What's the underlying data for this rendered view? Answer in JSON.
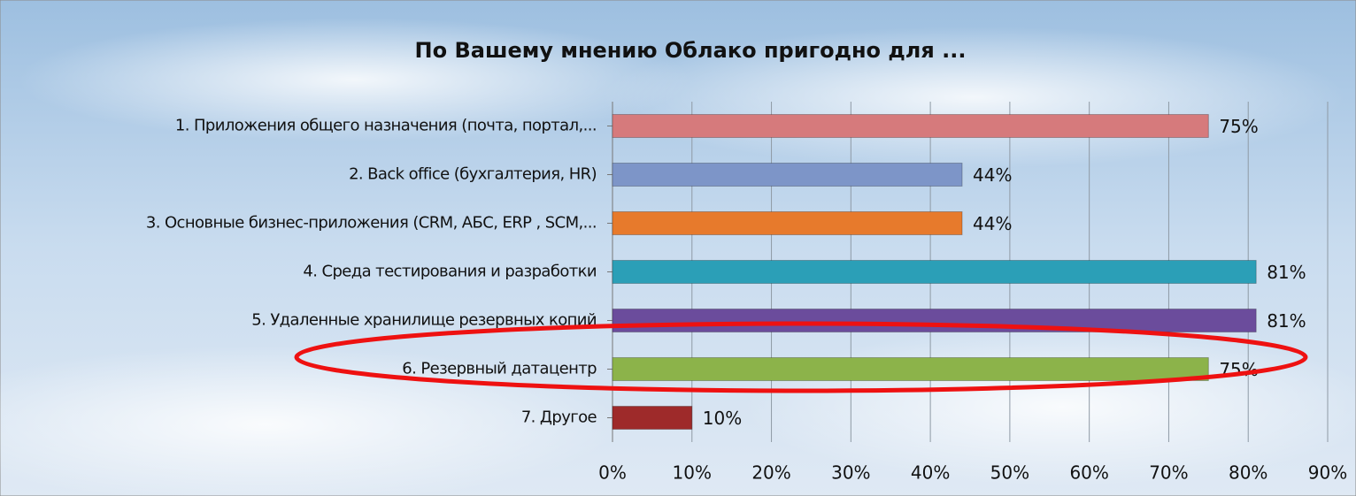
{
  "chart_data": {
    "type": "bar",
    "orientation": "horizontal",
    "title": "По Вашему мнению Облако пригодно для ...",
    "categories": [
      "1. Приложения общего назначения (почта, портал,...",
      "2. Back office (бухгалтерия, HR)",
      "3. Основные бизнес-приложения (CRM, АБС, ERP , SCM,...",
      "4. Среда тестирования и разработки",
      "5. Удаленные хранилище резервных копий",
      "6. Резервный датацентр",
      "7. Другое"
    ],
    "values": [
      75,
      44,
      44,
      81,
      81,
      75,
      10
    ],
    "value_labels": [
      "75%",
      "44%",
      "44%",
      "81%",
      "81%",
      "75%",
      "10%"
    ],
    "colors": [
      "#d67a7c",
      "#7d95c8",
      "#e77a2c",
      "#2b9fb7",
      "#6b4c9c",
      "#8cb34a",
      "#9e2a2a"
    ],
    "xlim": [
      0,
      90
    ],
    "xticks": [
      {
        "value": 0,
        "label": "0%"
      },
      {
        "value": 10,
        "label": "10%"
      },
      {
        "value": 20,
        "label": "20%"
      },
      {
        "value": 30,
        "label": "30%"
      },
      {
        "value": 40,
        "label": "40%"
      },
      {
        "value": 50,
        "label": "50%"
      },
      {
        "value": 60,
        "label": "60%"
      },
      {
        "value": 70,
        "label": "70%"
      },
      {
        "value": 80,
        "label": "80%"
      },
      {
        "value": 90,
        "label": "90%"
      }
    ],
    "grid": true
  }
}
